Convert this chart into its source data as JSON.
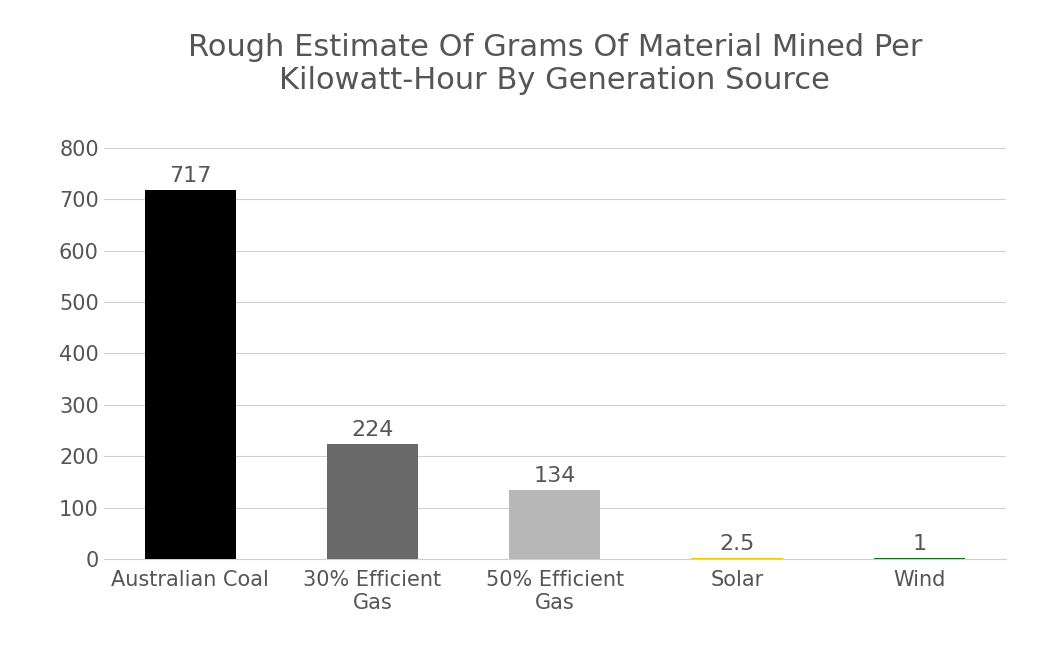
{
  "title": "Rough Estimate Of Grams Of Material Mined Per\nKilowatt-Hour By Generation Source",
  "categories": [
    "Australian Coal",
    "30% Efficient\nGas",
    "50% Efficient\nGas",
    "Solar",
    "Wind"
  ],
  "values": [
    717,
    224,
    134,
    2.5,
    1
  ],
  "bar_colors": [
    "#000000",
    "#696969",
    "#b8b8b8",
    "#f0c800",
    "#1a6b1a"
  ],
  "bar_labels": [
    "717",
    "224",
    "134",
    "2.5",
    "1"
  ],
  "ylim": [
    0,
    860
  ],
  "yticks": [
    0,
    100,
    200,
    300,
    400,
    500,
    600,
    700,
    800
  ],
  "background_color": "#ffffff",
  "title_color": "#555555",
  "title_fontsize": 22,
  "label_fontsize": 15,
  "tick_fontsize": 15,
  "annotation_fontsize": 16,
  "annotation_color": "#555555",
  "grid_color": "#d0d0d0",
  "bar_width": 0.5
}
